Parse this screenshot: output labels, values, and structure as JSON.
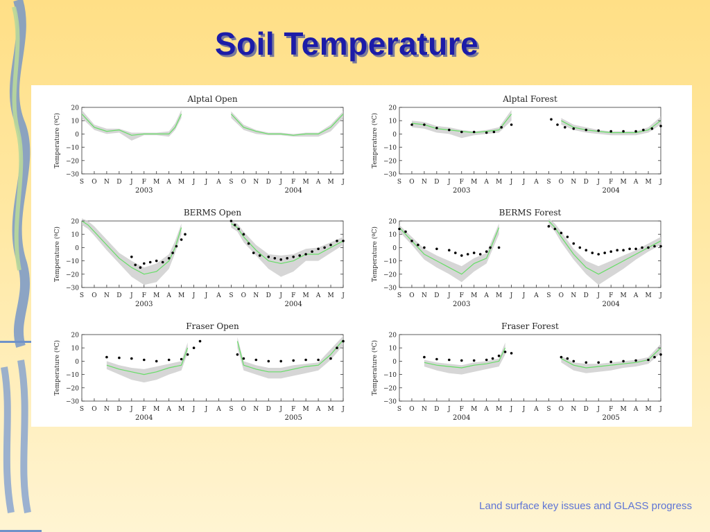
{
  "slide": {
    "title": "Soil Temperature",
    "footer": "Land surface key issues and GLASS progress"
  },
  "colors": {
    "title": "#1c1ca8",
    "model_line": "#66dd66",
    "spread_band": "#cccccc",
    "observed_points": "#000000",
    "footer": "#5d74d6"
  },
  "chart_data": [
    {
      "type": "line",
      "title": "Alptal Open",
      "ylabel": "Temperature (ºC)",
      "ylim": [
        -30,
        20
      ],
      "yticks": [
        20,
        10,
        0,
        -10,
        -20,
        -30
      ],
      "months": [
        "S",
        "O",
        "N",
        "D",
        "J",
        "F",
        "M",
        "A",
        "M",
        "J",
        "J",
        "A",
        "S",
        "O",
        "N",
        "D",
        "J",
        "F",
        "M",
        "A",
        "M",
        "J"
      ],
      "years": [
        "2003",
        "2004"
      ],
      "x": [
        0,
        1,
        2,
        3,
        4,
        5,
        6,
        7,
        7.5,
        8,
        9,
        10,
        11,
        12,
        13,
        14,
        15,
        16,
        17,
        18,
        19,
        20,
        20.5,
        21
      ],
      "model": [
        15,
        5,
        2,
        3,
        -1,
        0,
        0,
        0,
        5,
        15,
        null,
        null,
        null,
        15,
        5,
        2,
        0,
        0,
        -1,
        0,
        0,
        5,
        10,
        15
      ],
      "band_high": [
        18,
        7,
        4,
        4,
        1,
        1,
        1,
        2,
        8,
        18,
        null,
        null,
        null,
        17,
        7,
        3,
        1,
        1,
        0,
        1,
        1,
        7,
        12,
        17
      ],
      "band_low": [
        12,
        3,
        0,
        1,
        -5,
        -1,
        -1,
        -2,
        3,
        12,
        null,
        null,
        null,
        12,
        3,
        0,
        -1,
        -1,
        -2,
        -2,
        -2,
        2,
        7,
        12
      ],
      "observed": []
    },
    {
      "type": "line",
      "title": "Alptal Forest",
      "ylabel": "Temperature (ºC)",
      "ylim": [
        -30,
        20
      ],
      "yticks": [
        20,
        10,
        0,
        -10,
        -20,
        -30
      ],
      "months": [
        "S",
        "O",
        "N",
        "D",
        "J",
        "F",
        "M",
        "A",
        "M",
        "J",
        "J",
        "A",
        "S",
        "O",
        "N",
        "D",
        "J",
        "F",
        "M",
        "A",
        "M",
        "J"
      ],
      "years": [
        "2003",
        "2004"
      ],
      "x": [
        1,
        2,
        3,
        4,
        5,
        6,
        7,
        8,
        9,
        10,
        11,
        12,
        13,
        14,
        15,
        16,
        17,
        18,
        19,
        20,
        21
      ],
      "model": [
        8,
        7,
        4,
        3,
        2,
        1,
        2,
        3,
        15,
        null,
        null,
        null,
        10,
        5,
        3,
        2,
        1,
        1,
        1,
        3,
        10
      ],
      "band_high": [
        10,
        9,
        6,
        5,
        3,
        2,
        3,
        5,
        18,
        null,
        null,
        null,
        12,
        7,
        5,
        3,
        2,
        2,
        2,
        5,
        13
      ],
      "band_low": [
        5,
        4,
        1,
        0,
        -3,
        -1,
        0,
        1,
        10,
        null,
        null,
        null,
        7,
        3,
        1,
        0,
        -1,
        -1,
        -1,
        1,
        7
      ],
      "observed": [
        [
          1,
          7
        ],
        [
          2,
          7
        ],
        [
          3,
          4.5
        ],
        [
          4,
          3
        ],
        [
          5,
          1.5
        ],
        [
          6,
          1.5
        ],
        [
          7,
          1
        ],
        [
          7.6,
          1.5
        ],
        [
          8.2,
          5
        ],
        [
          9,
          7
        ],
        [
          12.2,
          11
        ],
        [
          12.7,
          7
        ],
        [
          13.3,
          5
        ],
        [
          14,
          4
        ],
        [
          15,
          3
        ],
        [
          16,
          2.5
        ],
        [
          17,
          2
        ],
        [
          18,
          2
        ],
        [
          19,
          2
        ],
        [
          19.6,
          3
        ],
        [
          20.3,
          4
        ],
        [
          21,
          6
        ]
      ]
    },
    {
      "type": "line",
      "title": "BERMS Open",
      "ylabel": "Temperature (ºC)",
      "ylim": [
        -30,
        20
      ],
      "yticks": [
        20,
        10,
        0,
        -10,
        -20,
        -30
      ],
      "months": [
        "S",
        "O",
        "N",
        "D",
        "J",
        "F",
        "M",
        "A",
        "M",
        "J",
        "J",
        "A",
        "S",
        "O",
        "N",
        "D",
        "J",
        "F",
        "M",
        "A",
        "M",
        "J"
      ],
      "years": [
        "2003",
        "2004"
      ],
      "x": [
        0,
        0.5,
        1,
        2,
        3,
        4,
        5,
        6,
        7,
        7.5,
        8,
        9,
        10,
        11,
        12,
        12.5,
        13,
        14,
        15,
        16,
        17,
        18,
        19,
        20,
        21
      ],
      "model": [
        20,
        17,
        12,
        2,
        -8,
        -15,
        -20,
        -18,
        -10,
        0,
        15,
        null,
        null,
        null,
        18,
        15,
        8,
        -2,
        -10,
        -12,
        -10,
        -5,
        -5,
        0,
        5
      ],
      "band_high": [
        22,
        20,
        16,
        6,
        -4,
        -10,
        -15,
        -12,
        -5,
        5,
        18,
        null,
        null,
        null,
        20,
        18,
        12,
        2,
        -5,
        -6,
        -5,
        -1,
        0,
        4,
        8
      ],
      "band_low": [
        17,
        14,
        9,
        -2,
        -12,
        -22,
        -28,
        -26,
        -16,
        -4,
        10,
        null,
        null,
        null,
        15,
        12,
        4,
        -6,
        -16,
        -22,
        -18,
        -10,
        -10,
        -4,
        2
      ],
      "observed": [
        [
          4,
          -7
        ],
        [
          4.3,
          -13
        ],
        [
          4.7,
          -15
        ],
        [
          5,
          -12
        ],
        [
          5.5,
          -11
        ],
        [
          6,
          -10
        ],
        [
          6.5,
          -11
        ],
        [
          7,
          -8
        ],
        [
          7.3,
          -4
        ],
        [
          7.6,
          1
        ],
        [
          8,
          6
        ],
        [
          8.3,
          10
        ],
        [
          12,
          20
        ],
        [
          12.3,
          17
        ],
        [
          12.6,
          14
        ],
        [
          13,
          10
        ],
        [
          13.4,
          3
        ],
        [
          13.8,
          -4
        ],
        [
          14.3,
          -6
        ],
        [
          15,
          -7
        ],
        [
          15.5,
          -8
        ],
        [
          16,
          -9
        ],
        [
          16.5,
          -8
        ],
        [
          17,
          -7
        ],
        [
          17.5,
          -6
        ],
        [
          18,
          -5
        ],
        [
          18.5,
          -3
        ],
        [
          19,
          -1
        ],
        [
          19.5,
          0
        ],
        [
          20,
          2
        ],
        [
          20.5,
          5
        ],
        [
          21,
          5
        ]
      ]
    },
    {
      "type": "line",
      "title": "BERMS Forest",
      "ylabel": "Temperature (ºC)",
      "ylim": [
        -30,
        20
      ],
      "yticks": [
        20,
        10,
        0,
        -10,
        -20,
        -30
      ],
      "months": [
        "S",
        "O",
        "N",
        "D",
        "J",
        "F",
        "M",
        "A",
        "M",
        "J",
        "J",
        "A",
        "S",
        "O",
        "N",
        "D",
        "J",
        "F",
        "M",
        "A",
        "M",
        "J"
      ],
      "years": [
        "2003",
        "2004"
      ],
      "x": [
        0,
        1,
        2,
        3,
        4,
        5,
        6,
        7,
        8,
        9,
        10,
        11,
        12,
        12.5,
        13,
        14,
        15,
        16,
        17,
        18,
        19,
        20,
        21
      ],
      "model": [
        15,
        5,
        -5,
        -10,
        -15,
        -20,
        -12,
        -8,
        15,
        null,
        null,
        null,
        20,
        15,
        8,
        -5,
        -15,
        -20,
        -15,
        -10,
        -5,
        0,
        5
      ],
      "band_high": [
        17,
        8,
        -1,
        -6,
        -10,
        -14,
        -8,
        -4,
        18,
        null,
        null,
        null,
        22,
        18,
        12,
        -1,
        -10,
        -14,
        -10,
        -6,
        -2,
        3,
        8
      ],
      "band_low": [
        12,
        2,
        -9,
        -15,
        -20,
        -26,
        -18,
        -12,
        10,
        null,
        null,
        null,
        17,
        12,
        4,
        -9,
        -20,
        -28,
        -22,
        -16,
        -9,
        -3,
        2
      ],
      "observed": [
        [
          0,
          14
        ],
        [
          0.5,
          12
        ],
        [
          1,
          5
        ],
        [
          1.5,
          2
        ],
        [
          2,
          0
        ],
        [
          3,
          -1
        ],
        [
          4,
          -2
        ],
        [
          4.5,
          -4
        ],
        [
          5,
          -6
        ],
        [
          5.5,
          -5
        ],
        [
          6,
          -4
        ],
        [
          6.5,
          -5
        ],
        [
          7,
          -3
        ],
        [
          7.3,
          0
        ],
        [
          8,
          0
        ],
        [
          12,
          16
        ],
        [
          12.5,
          14
        ],
        [
          13,
          11
        ],
        [
          13.5,
          8
        ],
        [
          14,
          3
        ],
        [
          14.5,
          0
        ],
        [
          15,
          -2
        ],
        [
          15.5,
          -4
        ],
        [
          16,
          -5
        ],
        [
          16.5,
          -4
        ],
        [
          17,
          -3
        ],
        [
          17.5,
          -2
        ],
        [
          18,
          -2
        ],
        [
          18.5,
          -1
        ],
        [
          19,
          -1
        ],
        [
          19.5,
          0
        ],
        [
          20,
          0
        ],
        [
          20.5,
          1
        ],
        [
          21,
          1
        ]
      ]
    },
    {
      "type": "line",
      "title": "Fraser Open",
      "ylabel": "Temperature (ºC)",
      "ylim": [
        -30,
        20
      ],
      "yticks": [
        20,
        10,
        0,
        -10,
        -20,
        -30
      ],
      "months": [
        "S",
        "O",
        "N",
        "D",
        "J",
        "F",
        "M",
        "A",
        "M",
        "J",
        "J",
        "A",
        "S",
        "O",
        "N",
        "D",
        "J",
        "F",
        "M",
        "A",
        "M",
        "J"
      ],
      "years": [
        "2004",
        "2005"
      ],
      "x": [
        2,
        3,
        4,
        5,
        6,
        7,
        8,
        8.5,
        9,
        10,
        11,
        12,
        12.5,
        13,
        14,
        15,
        16,
        17,
        18,
        19,
        20,
        21
      ],
      "model": [
        -3,
        -6,
        -8,
        -10,
        -8,
        -5,
        -3,
        10,
        null,
        null,
        null,
        null,
        15,
        -3,
        -6,
        -8,
        -8,
        -6,
        -4,
        -3,
        5,
        16
      ],
      "band_high": [
        0,
        -3,
        -5,
        -6,
        -4,
        -2,
        0,
        14,
        null,
        null,
        null,
        null,
        18,
        0,
        -3,
        -5,
        -5,
        -3,
        -2,
        -1,
        9,
        19
      ],
      "band_low": [
        -6,
        -10,
        -14,
        -16,
        -14,
        -10,
        -7,
        6,
        null,
        null,
        null,
        null,
        10,
        -7,
        -10,
        -13,
        -13,
        -11,
        -9,
        -7,
        1,
        12
      ],
      "observed": [
        [
          2,
          3
        ],
        [
          3,
          2.5
        ],
        [
          4,
          2
        ],
        [
          5,
          1
        ],
        [
          6,
          0
        ],
        [
          7,
          1
        ],
        [
          8,
          1.5
        ],
        [
          8.5,
          5
        ],
        [
          9,
          10
        ],
        [
          9.5,
          15
        ],
        [
          12.5,
          5
        ],
        [
          13,
          2
        ],
        [
          14,
          1
        ],
        [
          15,
          0
        ],
        [
          16,
          0
        ],
        [
          17,
          0.5
        ],
        [
          18,
          1
        ],
        [
          19,
          1
        ],
        [
          20,
          2
        ],
        [
          20.5,
          10
        ],
        [
          21,
          15
        ]
      ]
    },
    {
      "type": "line",
      "title": "Fraser Forest",
      "ylabel": "Temperature (ºC)",
      "ylim": [
        -30,
        20
      ],
      "yticks": [
        20,
        10,
        0,
        -10,
        -20,
        -30
      ],
      "months": [
        "S",
        "O",
        "N",
        "D",
        "J",
        "F",
        "M",
        "A",
        "M",
        "J",
        "J",
        "A",
        "S",
        "O",
        "N",
        "D",
        "J",
        "F",
        "M",
        "A",
        "M",
        "J"
      ],
      "years": [
        "2004",
        "2005"
      ],
      "x": [
        2,
        3,
        4,
        5,
        6,
        7,
        8,
        8.5,
        9,
        10,
        11,
        12,
        13,
        14,
        15,
        16,
        17,
        18,
        19,
        20,
        21
      ],
      "model": [
        -1,
        -3,
        -4,
        -5,
        -3,
        -2,
        0,
        10,
        null,
        null,
        null,
        null,
        2,
        -3,
        -5,
        -4,
        -3,
        -2,
        -1,
        1,
        10
      ],
      "band_high": [
        1,
        -1,
        -2,
        -3,
        -1,
        0,
        2,
        14,
        null,
        null,
        null,
        null,
        4,
        -1,
        -2,
        -2,
        -1,
        0,
        1,
        3,
        13
      ],
      "band_low": [
        -4,
        -7,
        -9,
        -10,
        -8,
        -6,
        -4,
        5,
        null,
        null,
        null,
        null,
        -1,
        -7,
        -9,
        -8,
        -7,
        -5,
        -4,
        -2,
        6
      ],
      "observed": [
        [
          2,
          3
        ],
        [
          3,
          1.5
        ],
        [
          4,
          1
        ],
        [
          5,
          0.5
        ],
        [
          6,
          0.5
        ],
        [
          7,
          1
        ],
        [
          7.5,
          2
        ],
        [
          8,
          4
        ],
        [
          8.5,
          7
        ],
        [
          9,
          6
        ],
        [
          13,
          3
        ],
        [
          13.5,
          2
        ],
        [
          14,
          0
        ],
        [
          15,
          -1
        ],
        [
          16,
          -1
        ],
        [
          17,
          -0.5
        ],
        [
          18,
          0
        ],
        [
          19,
          0.5
        ],
        [
          20,
          1
        ],
        [
          20.5,
          3
        ],
        [
          21,
          5
        ]
      ]
    }
  ]
}
